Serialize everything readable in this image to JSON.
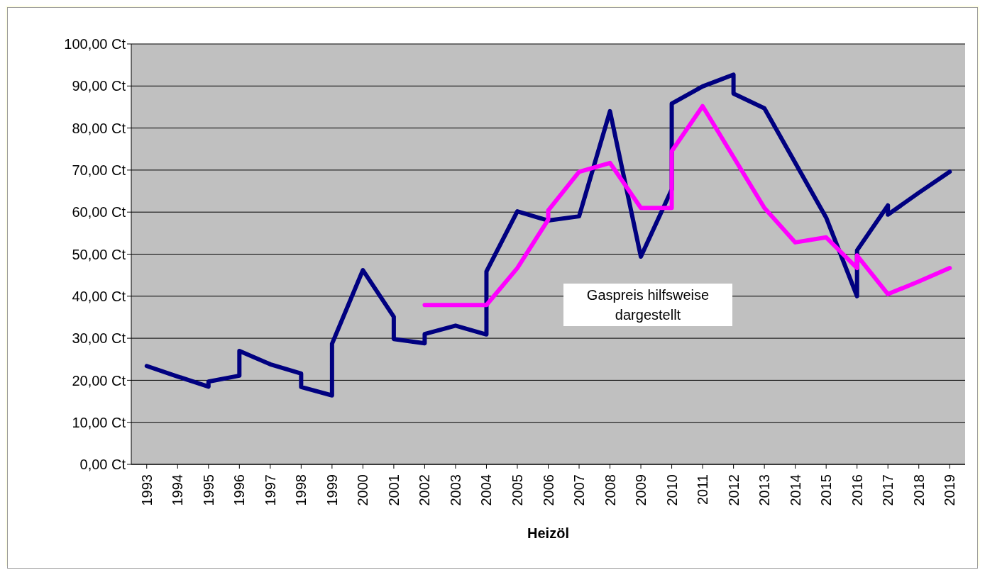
{
  "chart_data": {
    "type": "line",
    "xlabel": "Heizöl",
    "annotations": [
      "Gaspreis hilfsweise dargestellt"
    ],
    "xlim": [
      1992.5,
      2019.5
    ],
    "xticks": [
      1993,
      1994,
      1995,
      1996,
      1997,
      1998,
      1999,
      2000,
      2001,
      2002,
      2003,
      2004,
      2005,
      2006,
      2007,
      2008,
      2009,
      2010,
      2011,
      2012,
      2013,
      2014,
      2015,
      2016,
      2017,
      2018,
      2019
    ],
    "ylim": [
      0,
      100
    ],
    "yticks": [
      {
        "value": 0,
        "label": "0,00 Ct"
      },
      {
        "value": 10,
        "label": "10,00 Ct"
      },
      {
        "value": 20,
        "label": "20,00 Ct"
      },
      {
        "value": 30,
        "label": "30,00 Ct"
      },
      {
        "value": 40,
        "label": "40,00 Ct"
      },
      {
        "value": 50,
        "label": "50,00 Ct"
      },
      {
        "value": 60,
        "label": "60,00 Ct"
      },
      {
        "value": 70,
        "label": "70,00 Ct"
      },
      {
        "value": 80,
        "label": "80,00 Ct"
      },
      {
        "value": 90,
        "label": "90,00 Ct"
      },
      {
        "value": 100,
        "label": "100,00 Ct"
      }
    ],
    "grid": "y",
    "marker": "none",
    "line_style": "solid",
    "series": [
      {
        "color": "#000080",
        "x": [
          1993,
          1994,
          1995,
          1995,
          1996,
          1996,
          1997,
          1998,
          1998,
          1999,
          1999,
          2000,
          2001,
          2001,
          2002,
          2002,
          2003,
          2004,
          2004,
          2005,
          2006,
          2007,
          2008,
          2009,
          2010,
          2010,
          2011,
          2012,
          2012,
          2013,
          2014,
          2015,
          2016,
          2016,
          2017,
          2017,
          2018,
          2019
        ],
        "values": [
          23.4,
          20.9,
          18.5,
          19.7,
          21.1,
          27.0,
          23.8,
          21.6,
          18.4,
          16.4,
          28.7,
          46.2,
          35.1,
          29.8,
          28.8,
          31.0,
          33.0,
          30.9,
          45.9,
          60.2,
          58.0,
          59.0,
          84.0,
          49.4,
          65.4,
          85.8,
          89.9,
          92.7,
          88.2,
          84.7,
          71.7,
          58.7,
          40.0,
          50.9,
          61.6,
          59.4,
          64.6,
          69.6
        ]
      },
      {
        "color": "#ff00ff",
        "x": [
          2002,
          2003,
          2004,
          2005,
          2006,
          2006,
          2007,
          2008,
          2009,
          2010,
          2010,
          2011,
          2012,
          2013,
          2014,
          2015,
          2016,
          2016,
          2017,
          2018,
          2019
        ],
        "values": [
          37.9,
          37.9,
          37.9,
          46.7,
          58.2,
          60.4,
          69.6,
          71.7,
          61.0,
          61.0,
          74.5,
          85.2,
          73.1,
          61.0,
          52.8,
          54.0,
          46.7,
          49.7,
          40.5,
          43.5,
          46.7
        ]
      }
    ]
  }
}
